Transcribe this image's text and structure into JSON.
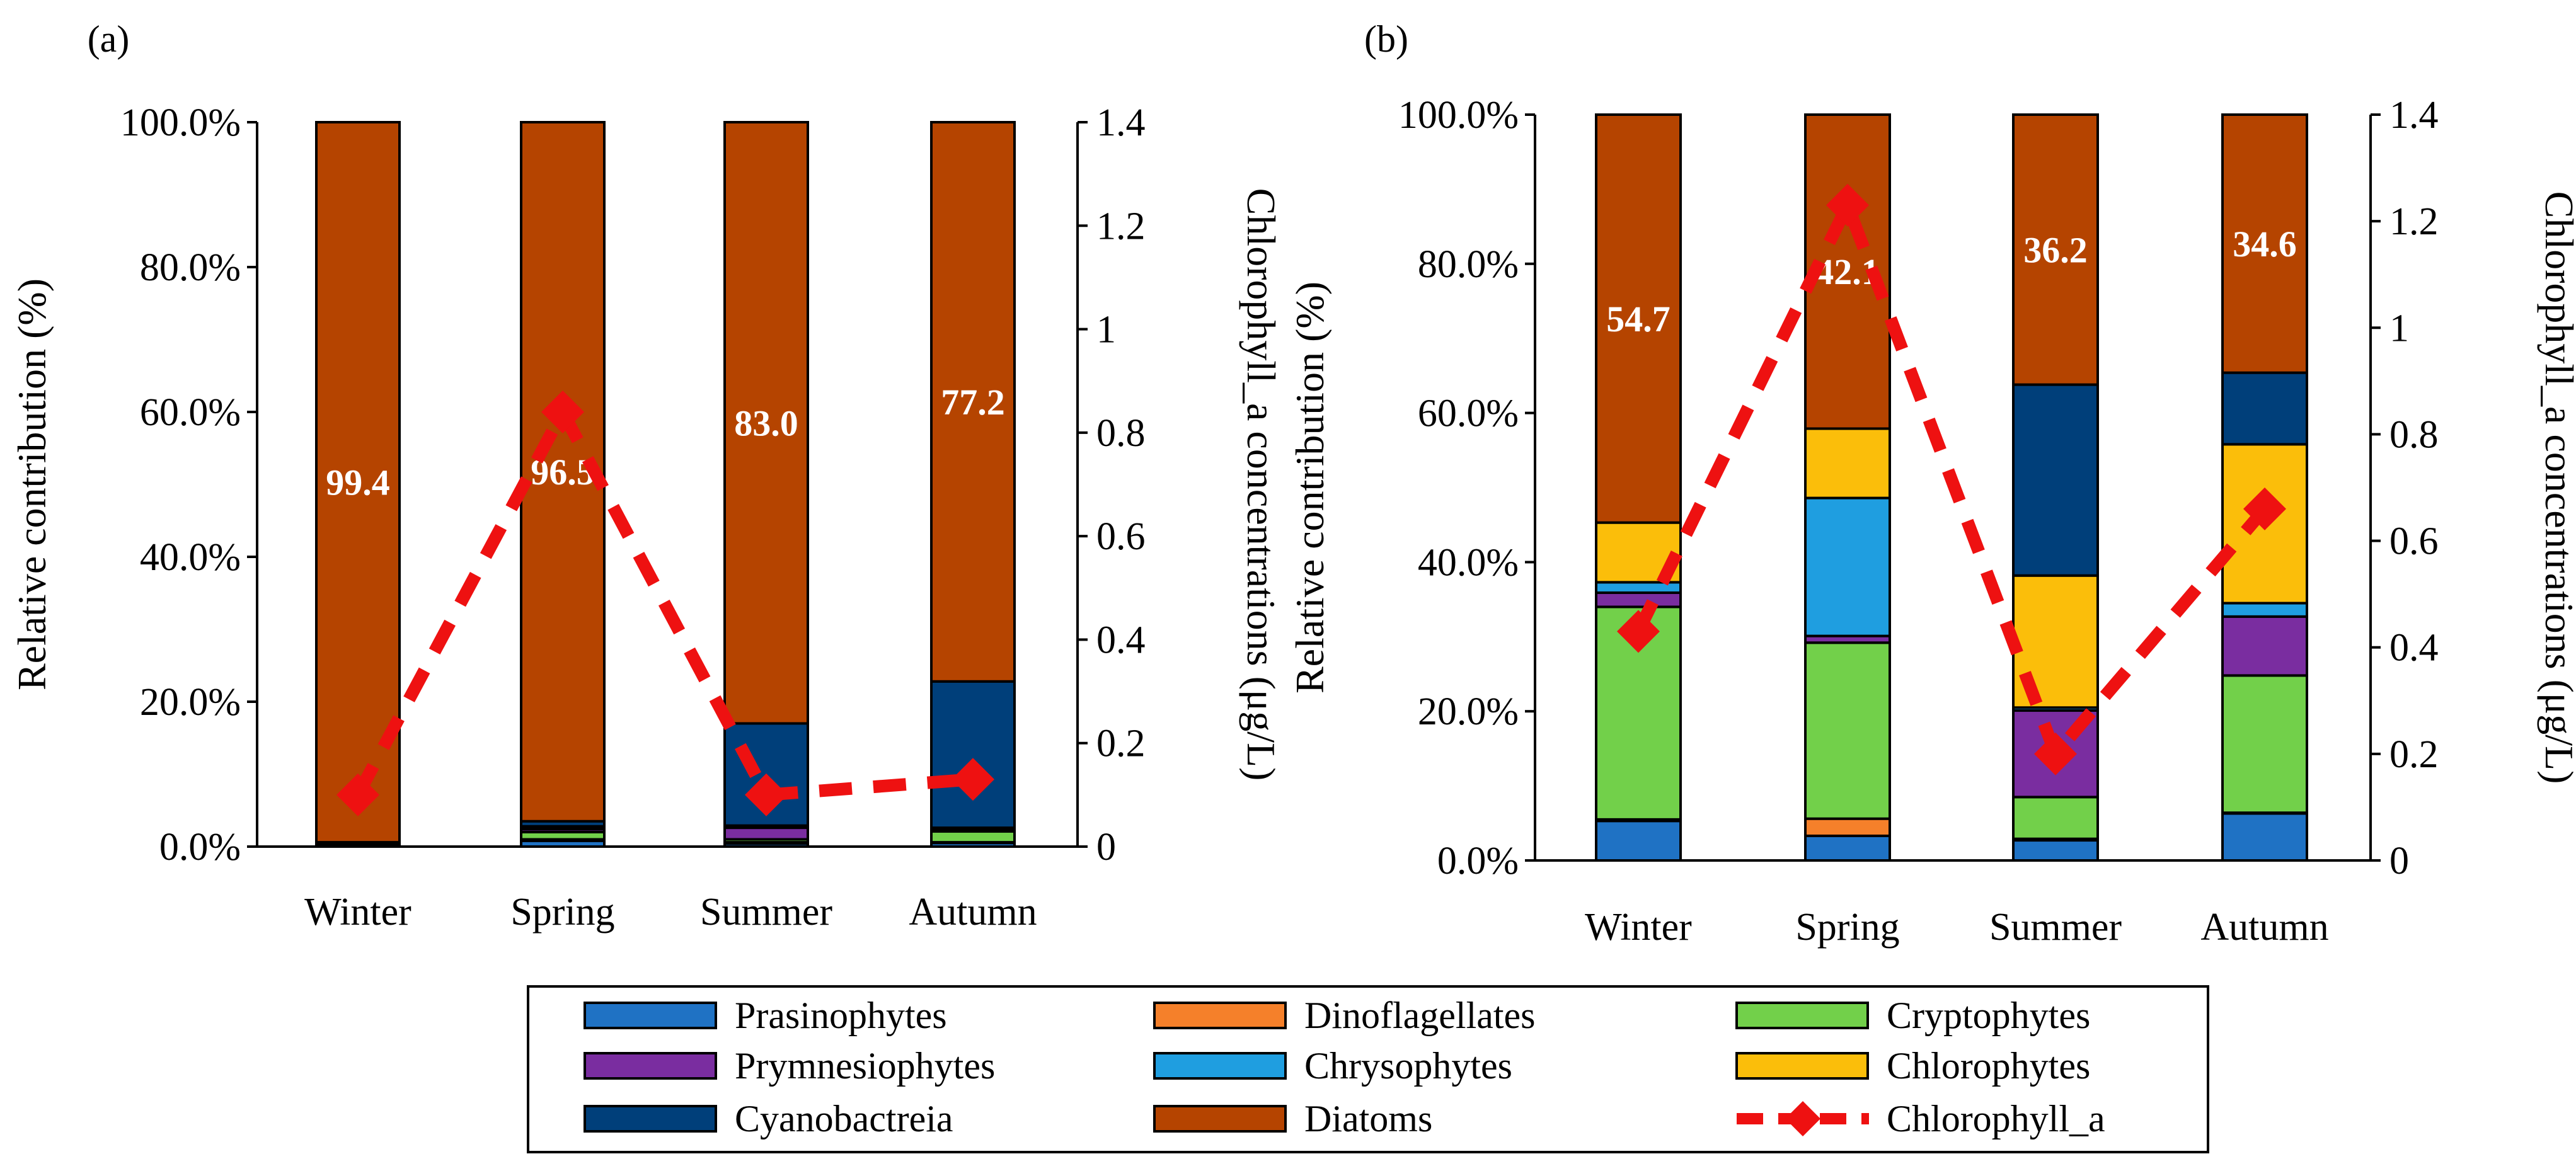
{
  "colors": {
    "Prasinophytes": "#1f72c4",
    "Dinoflagellates": "#f5802a",
    "Cryptophytes": "#72d04a",
    "Prymnesiophytes": "#7a2da0",
    "Chrysophytes": "#1f9ee0",
    "Chlorophytes": "#fbbe0a",
    "Cyanobactreia": "#003f7a",
    "Diatoms": "#b54400",
    "Chlorophyll_a": "#ee1111"
  },
  "legend": {
    "items": [
      "Prasinophytes",
      "Dinoflagellates",
      "Cryptophytes",
      "Prymnesiophytes",
      "Chrysophytes",
      "Chlorophytes",
      "Cyanobactreia",
      "Diatoms",
      "Chlorophyll_a"
    ]
  },
  "chart_data": [
    {
      "panel": "(a)",
      "type": "bar",
      "stacked": true,
      "categories": [
        "Winter",
        "Spring",
        "Summer",
        "Autumn"
      ],
      "ylabel": "Relative contribution  (%)",
      "y2label": "Chlorophyll_a concentrations (μg/L)",
      "ylim": [
        0,
        100
      ],
      "y2lim": [
        0,
        1.4
      ],
      "yticks": [
        "0.0%",
        "20.0%",
        "40.0%",
        "60.0%",
        "80.0%",
        "100.0%"
      ],
      "y2ticks": [
        "0",
        "0.2",
        "0.4",
        "0.6",
        "0.8",
        "1",
        "1.2",
        "1.4"
      ],
      "series": [
        {
          "name": "Prasinophytes",
          "values": [
            0.2,
            0.8,
            0.4,
            0.5
          ]
        },
        {
          "name": "Dinoflagellates",
          "values": [
            0.0,
            0.2,
            0.2,
            0.1
          ]
        },
        {
          "name": "Cryptophytes",
          "values": [
            0.2,
            1.0,
            0.4,
            1.5
          ]
        },
        {
          "name": "Prymnesiophytes",
          "values": [
            0.1,
            0.4,
            1.6,
            0.2
          ]
        },
        {
          "name": "Chrysophytes",
          "values": [
            0.0,
            0.1,
            0.2,
            0.1
          ]
        },
        {
          "name": "Chlorophytes",
          "values": [
            0.0,
            0.3,
            0.1,
            0.2
          ]
        },
        {
          "name": "Cyanobactreia",
          "values": [
            0.1,
            0.7,
            14.1,
            20.2
          ]
        },
        {
          "name": "Diatoms",
          "values": [
            99.4,
            96.5,
            83.0,
            77.2
          ]
        }
      ],
      "segment_labels": [
        "99.4",
        "96.5",
        "83.0",
        "77.2"
      ],
      "line": {
        "name": "Chlorophyll_a",
        "values": [
          0.1,
          0.84,
          0.1,
          0.13
        ]
      }
    },
    {
      "panel": "(b)",
      "type": "bar",
      "stacked": true,
      "categories": [
        "Winter",
        "Spring",
        "Summer",
        "Autumn"
      ],
      "ylabel": "Relative contribution  (%)",
      "y2label": "Chlorophyll_a concentrations (μg/L)",
      "ylim": [
        0,
        100
      ],
      "y2lim": [
        0,
        1.4
      ],
      "yticks": [
        "0.0%",
        "20.0%",
        "40.0%",
        "60.0%",
        "80.0%",
        "100.0%"
      ],
      "y2ticks": [
        "0",
        "0.2",
        "0.4",
        "0.6",
        "0.8",
        "1",
        "1.2",
        "1.4"
      ],
      "series": [
        {
          "name": "Prasinophytes",
          "values": [
            5.3,
            3.3,
            2.7,
            6.3
          ]
        },
        {
          "name": "Dinoflagellates",
          "values": [
            0.2,
            2.3,
            0.2,
            0.1
          ]
        },
        {
          "name": "Cryptophytes",
          "values": [
            28.5,
            23.6,
            5.6,
            18.4
          ]
        },
        {
          "name": "Prymnesiophytes",
          "values": [
            1.9,
            0.9,
            11.6,
            7.9
          ]
        },
        {
          "name": "Chrysophytes",
          "values": [
            1.4,
            18.5,
            0.4,
            1.8
          ]
        },
        {
          "name": "Chlorophytes",
          "values": [
            8.0,
            9.3,
            17.7,
            21.3
          ]
        },
        {
          "name": "Cyanobactreia",
          "values": [
            0.0,
            0.0,
            25.6,
            9.6
          ]
        },
        {
          "name": "Diatoms",
          "values": [
            54.7,
            42.1,
            36.2,
            34.6
          ]
        }
      ],
      "segment_labels": [
        "54.7",
        "42.1",
        "36.2",
        "34.6"
      ],
      "line": {
        "name": "Chlorophyll_a",
        "values": [
          0.43,
          1.23,
          0.2,
          0.66
        ]
      }
    }
  ]
}
